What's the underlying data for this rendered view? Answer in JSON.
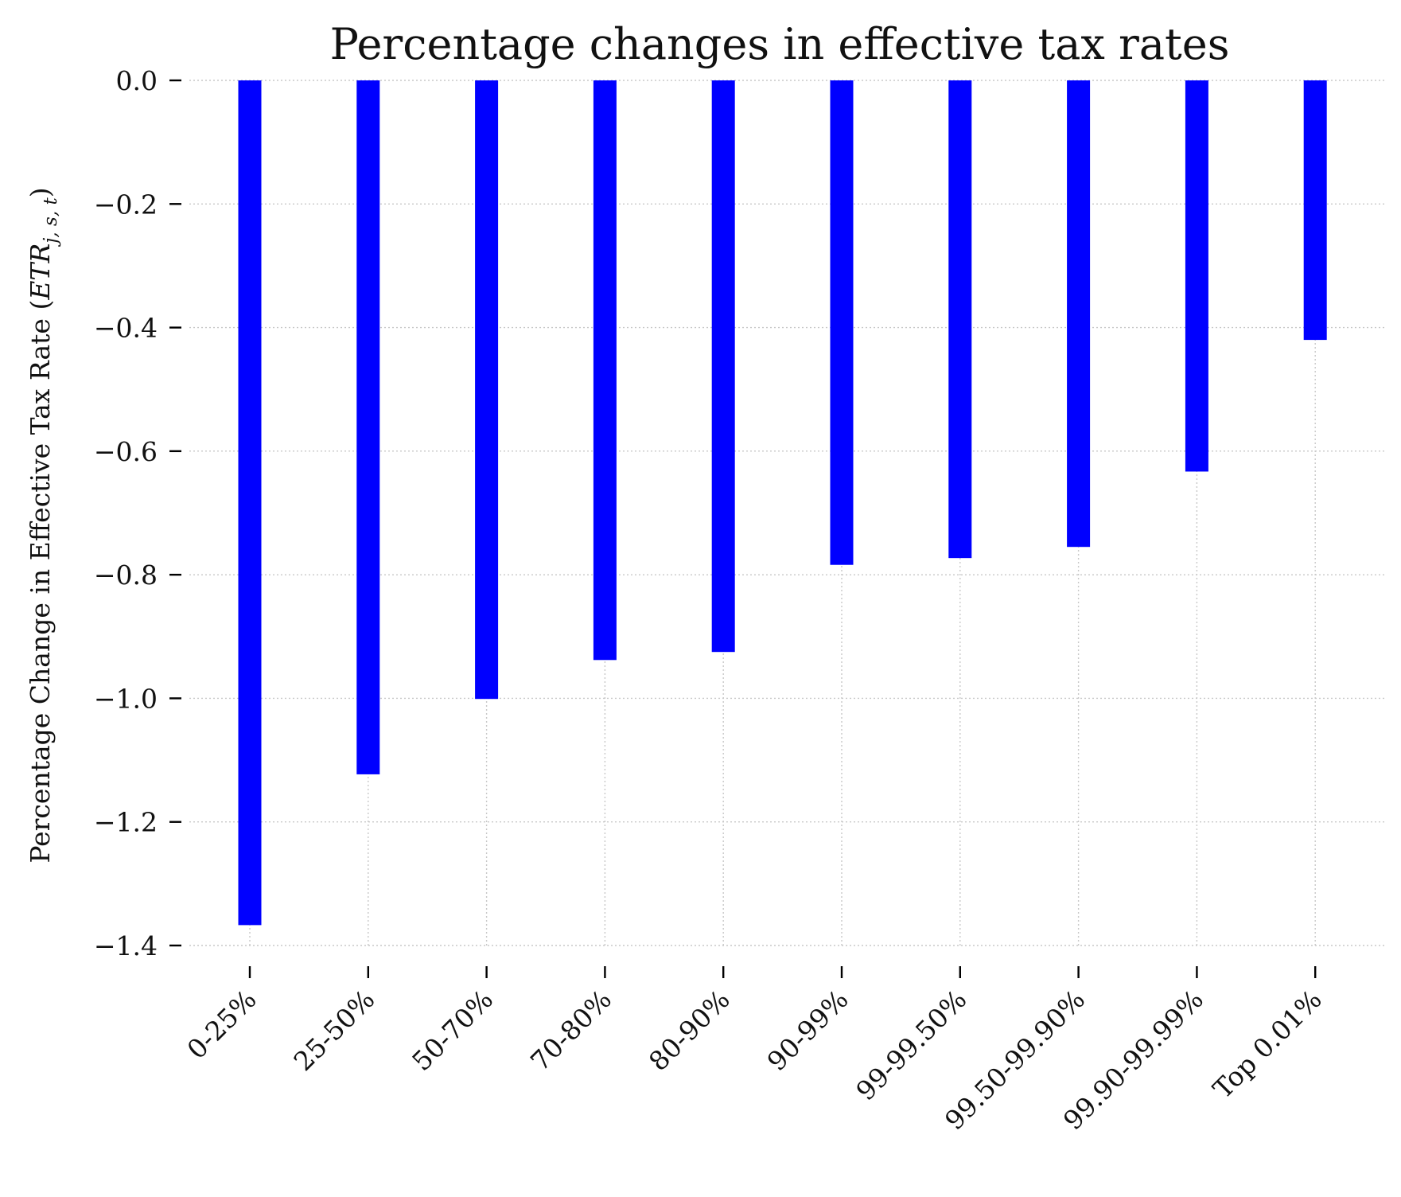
{
  "chart_data": {
    "type": "bar",
    "title": "Percentage changes in effective tax rates",
    "ylabel": "Percentage Change in Effective Tax Rate",
    "ylabel_math": {
      "base": "ETR",
      "subscript": "j, s, t"
    },
    "xlabel": "",
    "categories": [
      "0-25%",
      "25-50%",
      "50-70%",
      "70-80%",
      "80-90%",
      "90-99%",
      "99-99.50%",
      "99.50-99.90%",
      "99.90-99.99%",
      "Top 0.01%"
    ],
    "values": [
      -1.367,
      -1.123,
      -1.001,
      -0.938,
      -0.925,
      -0.784,
      -0.773,
      -0.755,
      -0.633,
      -0.42
    ],
    "ylim": [
      -1.4,
      0.0
    ],
    "yticks": [
      "0.0",
      "−0.2",
      "−0.4",
      "−0.6",
      "−0.8",
      "−1.0",
      "−1.2",
      "−1.4"
    ],
    "ytick_values": [
      0.0,
      -0.2,
      -0.4,
      -0.6,
      -0.8,
      -1.0,
      -1.2,
      -1.4
    ],
    "bar_color": "#0000ff",
    "grid": true,
    "legend": "none"
  }
}
